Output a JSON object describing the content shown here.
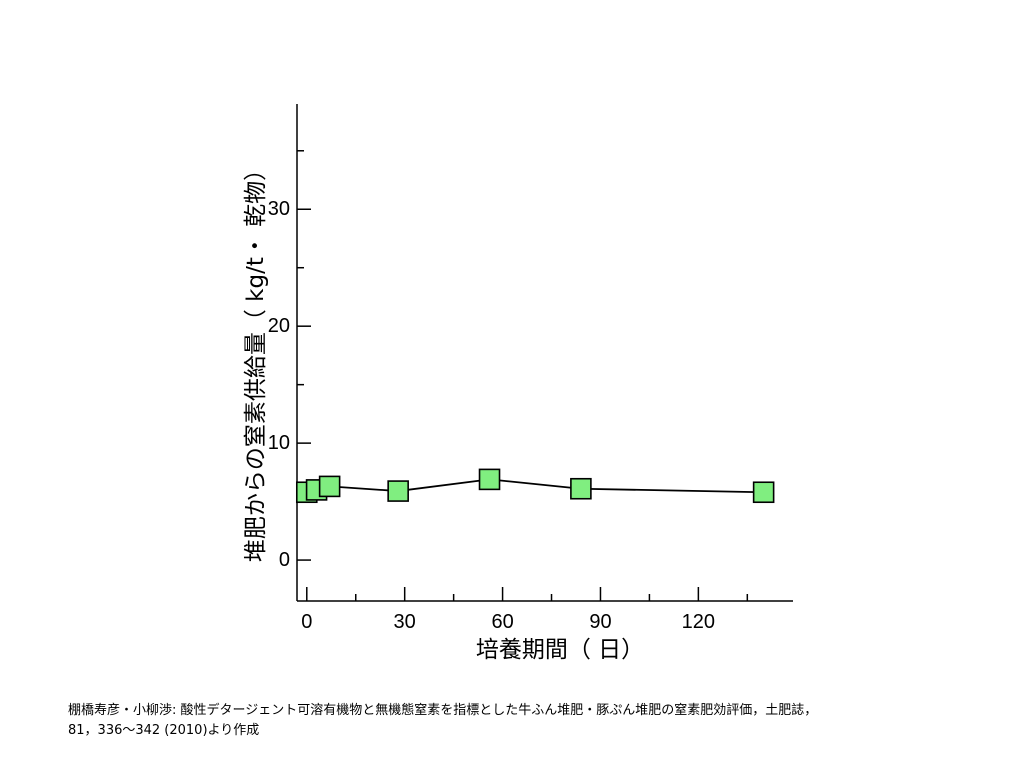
{
  "chart_data": {
    "type": "line",
    "xlabel": "培養期間（ 日）",
    "ylabel": "堆肥からの窒素供給量（ kg/t・ 乾物）",
    "xlim": [
      -3,
      149
    ],
    "ylim": [
      -3.5,
      39
    ],
    "xticks": [
      0,
      30,
      60,
      90,
      120
    ],
    "yticks": [
      0,
      10,
      20,
      30
    ],
    "x_minor_ticks": [
      15,
      45,
      75,
      105,
      135
    ],
    "y_minor_ticks": [
      5,
      15,
      25,
      35
    ],
    "grid": false,
    "marker": "square",
    "marker_color": "#80ee80",
    "line_color": "#000000",
    "series": [
      {
        "x": [
          0,
          3,
          7,
          28,
          56,
          84,
          140
        ],
        "y": [
          5.8,
          6.0,
          6.3,
          5.9,
          6.9,
          6.1,
          5.8
        ]
      }
    ]
  },
  "citation": {
    "line1": "棚橋寿彦・小柳渉: 酸性デタージェント可溶有機物と無機態窒素を指標とした牛ふん堆肥・豚ぷん堆肥の窒素肥効評価，土肥誌，",
    "line2": "81，336～342 (2010)より作成"
  }
}
